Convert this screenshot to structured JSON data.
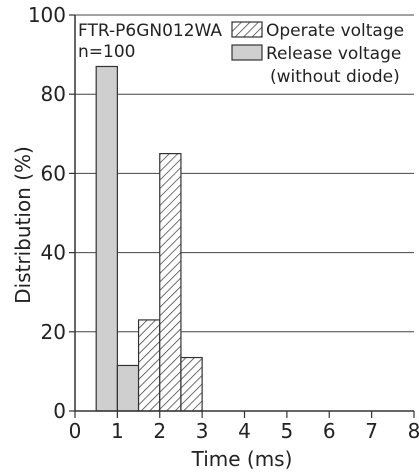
{
  "chart_data": {
    "type": "bar",
    "xlabel": "Time (ms)",
    "ylabel": "Distribution (%)",
    "xlim": [
      0,
      8
    ],
    "ylim": [
      0,
      100
    ],
    "xticks": [
      "0",
      "1",
      "2",
      "3",
      "4",
      "5",
      "6",
      "7",
      "8"
    ],
    "yticks": [
      "0",
      "20",
      "40",
      "60",
      "80",
      "100"
    ],
    "grid": "horizontal",
    "legend_position": "top-right",
    "annotation": [
      "FTR-P6GN012WA",
      "n=100"
    ],
    "bin_width": 0.5,
    "series": [
      {
        "name": "Release voltage (without diode)",
        "style": "solid",
        "color": "#cfcfcf",
        "bins": [
          {
            "x_start": 0.5,
            "value": 87
          },
          {
            "x_start": 1.0,
            "value": 11.5
          }
        ]
      },
      {
        "name": "Operate voltage",
        "style": "hatched",
        "color": "#ffffff",
        "bins": [
          {
            "x_start": 1.5,
            "value": 23
          },
          {
            "x_start": 2.0,
            "value": 65
          },
          {
            "x_start": 2.5,
            "value": 13.5
          }
        ]
      }
    ],
    "legend": {
      "operate_label": "Operate voltage",
      "release_label_line1": "Release voltage",
      "release_label_line2": "(without diode)"
    }
  }
}
